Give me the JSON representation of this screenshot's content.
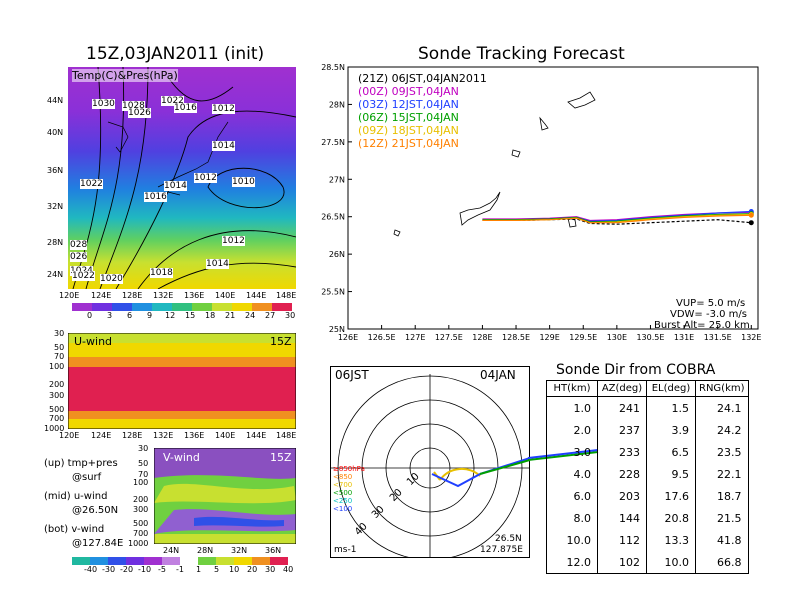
{
  "left_panel": {
    "title": "15Z,03JAN2011 (init)",
    "map_label": "Temp(C)&Pres(hPa)",
    "lat_ticks": [
      "44N",
      "40N",
      "36N",
      "32N",
      "28N",
      "24N"
    ],
    "lon_ticks": [
      "120E",
      "124E",
      "128E",
      "132E",
      "136E",
      "140E",
      "144E",
      "148E"
    ],
    "colorbar_ticks": [
      "0",
      "3",
      "6",
      "9",
      "12",
      "15",
      "18",
      "21",
      "24",
      "27",
      "30"
    ],
    "isobar_labels": [
      "1030",
      "1028",
      "1026",
      "1022",
      "1016",
      "1012",
      "1014",
      "1012",
      "1010",
      "1022",
      "1014",
      "1016",
      "1012",
      "1014",
      "028",
      "026",
      "1024",
      "1022",
      "1020",
      "1018"
    ],
    "uwind": {
      "label": "U-wind",
      "time": "15Z",
      "levels": [
        "30",
        "50",
        "70",
        "100",
        "200",
        "300",
        "500",
        "700",
        "1000"
      ],
      "lon_ticks": [
        "120E",
        "124E",
        "128E",
        "132E",
        "136E",
        "140E",
        "144E",
        "148E"
      ]
    },
    "vwind": {
      "label": "V-wind",
      "time": "15Z",
      "levels": [
        "30",
        "50",
        "70",
        "100",
        "200",
        "300",
        "500",
        "700",
        "1000"
      ],
      "lat_ticks": [
        "24N",
        "28N",
        "32N",
        "36N"
      ]
    },
    "legend": [
      {
        "line1": "(up) tmp+pres",
        "line2": "@surf"
      },
      {
        "line1": "(mid) u-wind",
        "line2": "@26.50N"
      },
      {
        "line1": "(bot) v-wind",
        "line2": "@127.84E"
      }
    ],
    "wind_colorbar_ticks": [
      "-40",
      "-30",
      "-20",
      "-10",
      "-5",
      "-1",
      "1",
      "5",
      "10",
      "20",
      "30",
      "40"
    ]
  },
  "chart_data": {
    "type": "line",
    "title": "Sonde Tracking Forecast",
    "x_ticks": [
      "126E",
      "126.5E",
      "127E",
      "127.5E",
      "128E",
      "128.5E",
      "129E",
      "129.5E",
      "130E",
      "130.5E",
      "131E",
      "131.5E",
      "132E"
    ],
    "y_ticks": [
      "28.5N",
      "28N",
      "27.5N",
      "27N",
      "26.5N",
      "26N",
      "25.5N",
      "25N"
    ],
    "xlim": [
      126,
      132.1
    ],
    "ylim": [
      25,
      28.5
    ],
    "series": [
      {
        "name": "(21Z)",
        "label": "06JST,04JAN2011",
        "color": "#000000",
        "dashed": true,
        "x": [
          128.0,
          128.5,
          129.0,
          129.4,
          129.6,
          130.0,
          130.5,
          131.0,
          131.5,
          132.0
        ],
        "y": [
          26.45,
          26.45,
          26.46,
          26.47,
          26.41,
          26.4,
          26.42,
          26.44,
          26.46,
          26.42
        ]
      },
      {
        "name": "(00Z)",
        "label": "09JST,04JAN",
        "color": "#c000c0",
        "dashed": false,
        "x": [
          128.0,
          128.5,
          129.0,
          129.4,
          129.6,
          130.0,
          130.5,
          131.0,
          131.5,
          132.0
        ],
        "y": [
          26.47,
          26.47,
          26.48,
          26.5,
          26.45,
          26.46,
          26.5,
          26.53,
          26.55,
          26.56
        ]
      },
      {
        "name": "(03Z)",
        "label": "12JST,04JAN",
        "color": "#2040ff",
        "dashed": false,
        "x": [
          128.0,
          128.5,
          129.0,
          129.4,
          129.6,
          130.0,
          130.5,
          131.0,
          131.5,
          132.0
        ],
        "y": [
          26.46,
          26.46,
          26.47,
          26.49,
          26.44,
          26.45,
          26.49,
          26.52,
          26.55,
          26.57
        ]
      },
      {
        "name": "(06Z)",
        "label": "15JST,04JAN",
        "color": "#00a000",
        "dashed": false,
        "x": [
          128.0,
          128.5,
          129.0,
          129.4,
          129.6,
          130.0,
          130.5,
          131.0,
          131.5,
          132.0
        ],
        "y": [
          26.46,
          26.46,
          26.47,
          26.49,
          26.43,
          26.44,
          26.48,
          26.51,
          26.53,
          26.54
        ]
      },
      {
        "name": "(09Z)",
        "label": "18JST,04JAN",
        "color": "#e8c000",
        "dashed": false,
        "x": [
          128.0,
          128.5,
          129.0,
          129.4,
          129.6,
          130.0,
          130.5,
          131.0,
          131.5,
          132.0
        ],
        "y": [
          26.45,
          26.45,
          26.46,
          26.48,
          26.42,
          26.43,
          26.47,
          26.5,
          26.52,
          26.53
        ]
      },
      {
        "name": "(12Z)",
        "label": "21JST,04JAN",
        "color": "#ff8000",
        "dashed": false,
        "x": [
          128.0,
          128.5,
          129.0,
          129.4,
          129.6,
          130.0,
          130.5,
          131.0,
          131.5,
          132.0
        ],
        "y": [
          26.45,
          26.45,
          26.46,
          26.48,
          26.42,
          26.42,
          26.46,
          26.49,
          26.51,
          26.52
        ]
      }
    ],
    "params": [
      "VUP= 5.0 m/s",
      "VDW= -3.0 m/s",
      "Burst Alt= 25.0 km"
    ]
  },
  "polar": {
    "time": "06JST",
    "date": "04JAN",
    "ring_labels": [
      "10",
      "20",
      "30",
      "40"
    ],
    "unit": "ms-1",
    "lat": "26.5N",
    "lon": "127.875E",
    "levels": [
      {
        "label": "≥850hPa",
        "color": "#ff0000"
      },
      {
        "label": "<850",
        "color": "#ff8000"
      },
      {
        "label": "<700",
        "color": "#e8c000"
      },
      {
        "label": "<500",
        "color": "#00a000"
      },
      {
        "label": "<250",
        "color": "#00c0c0"
      },
      {
        "label": "<100",
        "color": "#2040ff"
      }
    ]
  },
  "sonde_table": {
    "title": "Sonde Dir from COBRA",
    "headers": [
      "HT(km)",
      "AZ(deg)",
      "EL(deg)",
      "RNG(km)"
    ],
    "rows": [
      [
        "1.0",
        "241",
        "1.5",
        "24.1"
      ],
      [
        "2.0",
        "237",
        "3.9",
        "24.2"
      ],
      [
        "3.0",
        "233",
        "6.5",
        "23.5"
      ],
      [
        "4.0",
        "228",
        "9.5",
        "22.1"
      ],
      [
        "6.0",
        "203",
        "17.6",
        "18.7"
      ],
      [
        "8.0",
        "144",
        "20.8",
        "21.5"
      ],
      [
        "10.0",
        "112",
        "13.3",
        "41.8"
      ],
      [
        "12.0",
        "102",
        "10.0",
        "66.8"
      ]
    ]
  }
}
